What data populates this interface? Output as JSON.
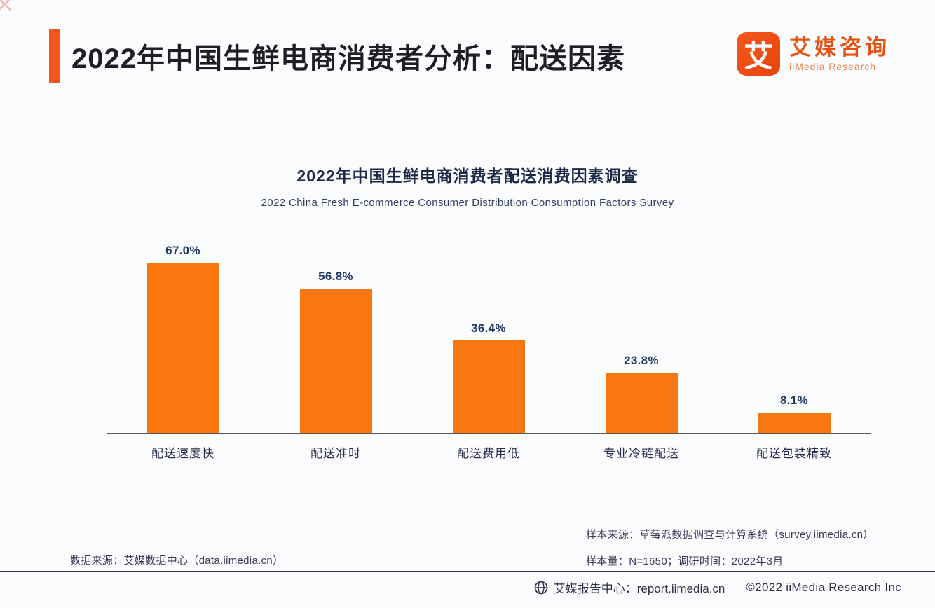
{
  "header": {
    "title": "2022年中国生鲜电商消费者分析：配送因素",
    "logo": {
      "glyph": "艾",
      "brand_cn": "艾媒咨询",
      "brand_en": "iiMedia Research"
    }
  },
  "chart": {
    "title": "2022年中国生鲜电商消费者配送消费因素调查",
    "subtitle": "2022 China Fresh E-commerce Consumer Distribution Consumption Factors Survey"
  },
  "chart_data": {
    "type": "bar",
    "title": "2022年中国生鲜电商消费者配送消费因素调查",
    "subtitle": "2022 China Fresh E-commerce Consumer Distribution Consumption Factors Survey",
    "categories": [
      "配送速度快",
      "配送准时",
      "配送费用低",
      "专业冷链配送",
      "配送包装精致"
    ],
    "values": [
      67.0,
      56.8,
      36.4,
      23.8,
      8.1
    ],
    "value_labels": [
      "67.0%",
      "56.8%",
      "36.4%",
      "23.8%",
      "8.1%"
    ],
    "xlabel": "",
    "ylabel": "",
    "ylim": [
      0,
      75
    ],
    "grid": false,
    "legend": false,
    "bar_color": "#F87711",
    "value_label_color": "#1F3864"
  },
  "sources": {
    "data_source": "数据来源：艾媒数据中心（data.iimedia.cn）",
    "sample_source": "样本来源：草莓派数据调查与计算系统（survey.iimedia.cn）",
    "sample_info": "样本量：N=1650；调研时间：2022年3月"
  },
  "footer": {
    "report_center": "艾媒报告中心：report.iimedia.cn",
    "copyright": "©2022 iiMedia Research Inc"
  },
  "colors": {
    "accent": "#F3571D",
    "bar": "#F87711",
    "brand": "#E8500F"
  }
}
